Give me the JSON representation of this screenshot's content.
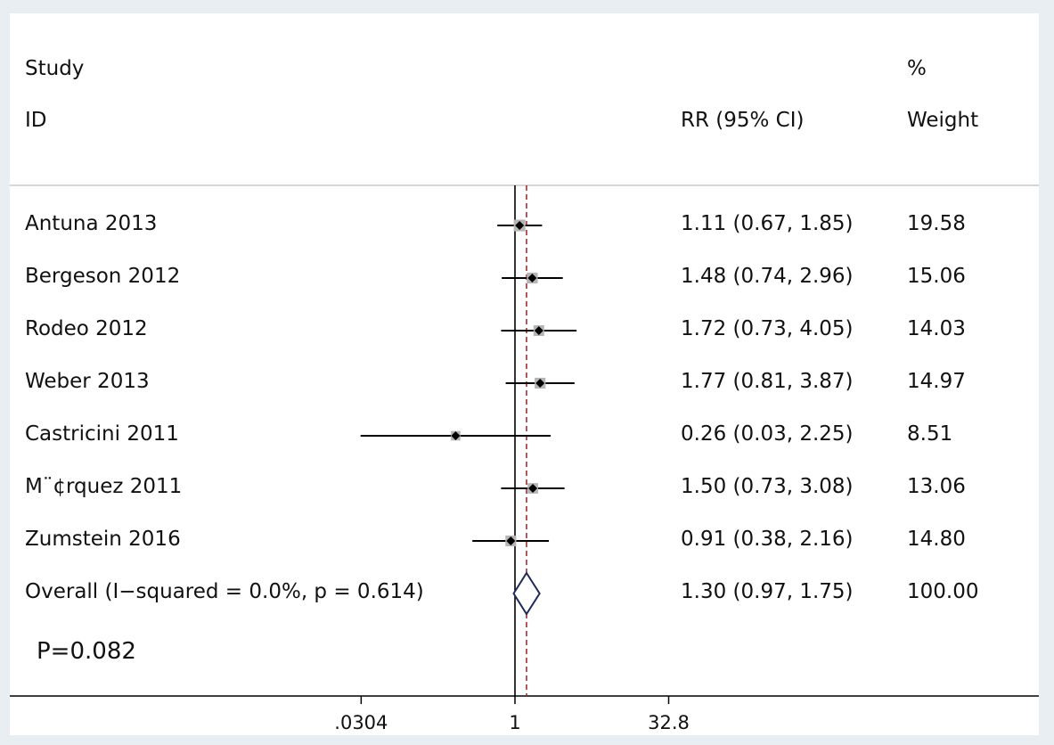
{
  "header": {
    "study_label": "Study",
    "id_label": "ID",
    "rr_label": "RR (95% CI)",
    "pct_label": "%",
    "weight_label": "Weight"
  },
  "chart_data": {
    "type": "forest",
    "scale": "log",
    "x_ticks": [
      ".0304",
      "1",
      "32.8"
    ],
    "x_tick_values": [
      0.0304,
      1,
      32.8
    ],
    "null_line": 1,
    "overall_line": 1.3,
    "studies": [
      {
        "id": "Antuna 2013",
        "rr": 1.11,
        "lo": 0.67,
        "hi": 1.85,
        "rr_text": "1.11 (0.67, 1.85)",
        "weight": "19.58"
      },
      {
        "id": "Bergeson 2012",
        "rr": 1.48,
        "lo": 0.74,
        "hi": 2.96,
        "rr_text": "1.48 (0.74, 2.96)",
        "weight": "15.06"
      },
      {
        "id": "Rodeo 2012",
        "rr": 1.72,
        "lo": 0.73,
        "hi": 4.05,
        "rr_text": "1.72 (0.73, 4.05)",
        "weight": "14.03"
      },
      {
        "id": "Weber 2013",
        "rr": 1.77,
        "lo": 0.81,
        "hi": 3.87,
        "rr_text": "1.77 (0.81, 3.87)",
        "weight": "14.97"
      },
      {
        "id": "Castricini 2011",
        "rr": 0.26,
        "lo": 0.03,
        "hi": 2.25,
        "rr_text": "0.26 (0.03, 2.25)",
        "weight": "8.51"
      },
      {
        "id": "M¨¢rquez 2011",
        "rr": 1.5,
        "lo": 0.73,
        "hi": 3.08,
        "rr_text": "1.50 (0.73, 3.08)",
        "weight": "13.06"
      },
      {
        "id": "Zumstein 2016",
        "rr": 0.91,
        "lo": 0.38,
        "hi": 2.16,
        "rr_text": "0.91 (0.38, 2.16)",
        "weight": "14.80"
      }
    ],
    "overall": {
      "label": "Overall  (I−squared = 0.0%, p = 0.614)",
      "rr": 1.3,
      "lo": 0.97,
      "hi": 1.75,
      "rr_text": "1.30 (0.97, 1.75)",
      "weight": "100.00"
    },
    "annotation": "P=0.082"
  },
  "colors": {
    "marker": "#000000",
    "weight_box": "#b5b5b5",
    "overall_diamond": "#1e2a5a",
    "overall_line": "#a03030"
  }
}
